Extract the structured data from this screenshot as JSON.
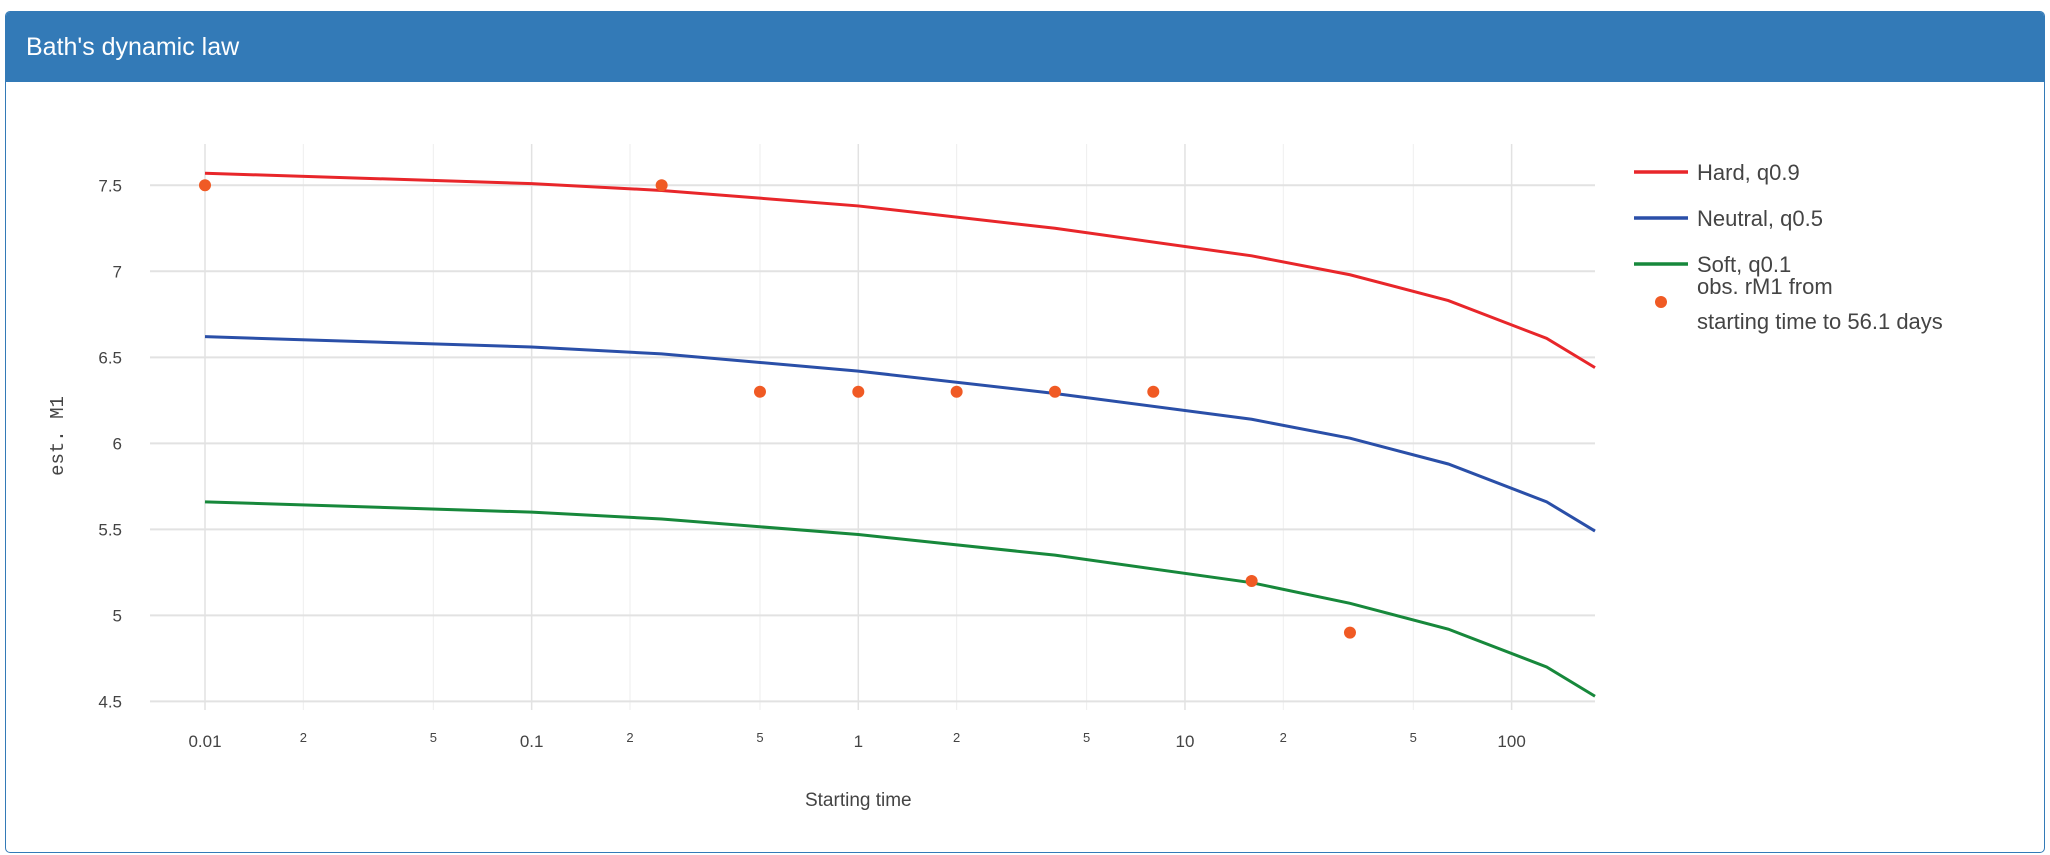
{
  "panel": {
    "title": "Bath's dynamic law"
  },
  "chart_data": {
    "type": "line",
    "title": "Bath's dynamic law",
    "xlabel": "Starting time",
    "ylabel": "est. M1",
    "xscale": "log",
    "xlim": [
      0.01,
      180
    ],
    "ylim": [
      4.45,
      7.74
    ],
    "grid": true,
    "legend_position": "right",
    "x_major_ticks": [
      {
        "v": 0.01,
        "label": "0.01"
      },
      {
        "v": 0.1,
        "label": "0.1"
      },
      {
        "v": 1,
        "label": "1"
      },
      {
        "v": 10,
        "label": "10"
      },
      {
        "v": 100,
        "label": "100"
      }
    ],
    "x_minor_ticks": [
      {
        "v": 0.02,
        "label": "2"
      },
      {
        "v": 0.05,
        "label": "5"
      },
      {
        "v": 0.2,
        "label": "2"
      },
      {
        "v": 0.5,
        "label": "5"
      },
      {
        "v": 2,
        "label": "2"
      },
      {
        "v": 5,
        "label": "5"
      },
      {
        "v": 20,
        "label": "2"
      },
      {
        "v": 50,
        "label": "5"
      }
    ],
    "y_ticks": [
      {
        "v": 4.5,
        "label": "4.5"
      },
      {
        "v": 5,
        "label": "5"
      },
      {
        "v": 5.5,
        "label": "5.5"
      },
      {
        "v": 6,
        "label": "6"
      },
      {
        "v": 6.5,
        "label": "6.5"
      },
      {
        "v": 7,
        "label": "7"
      },
      {
        "v": 7.5,
        "label": "7.5"
      }
    ],
    "x": [
      0.01,
      0.1,
      0.25,
      1,
      4,
      16,
      32,
      64,
      128,
      180
    ],
    "series": [
      {
        "name": "Hard, q0.9",
        "color": "#e8262a",
        "values": [
          7.57,
          7.51,
          7.47,
          7.38,
          7.25,
          7.09,
          6.98,
          6.83,
          6.61,
          6.44
        ]
      },
      {
        "name": "Neutral, q0.5",
        "color": "#2a4fa8",
        "values": [
          6.62,
          6.56,
          6.52,
          6.42,
          6.29,
          6.14,
          6.03,
          5.88,
          5.66,
          5.49
        ]
      },
      {
        "name": "Soft, q0.1",
        "color": "#17883b",
        "values": [
          5.66,
          5.6,
          5.56,
          5.47,
          5.35,
          5.19,
          5.07,
          4.92,
          4.7,
          4.53
        ]
      }
    ],
    "scatter": {
      "name_line1": "obs. rM1 from",
      "name_line2": " starting time to 56.1 days",
      "color": "#f05a24",
      "points": [
        [
          0.01,
          7.5
        ],
        [
          0.25,
          7.5
        ],
        [
          0.5,
          6.3
        ],
        [
          1,
          6.3
        ],
        [
          2,
          6.3
        ],
        [
          4,
          6.3
        ],
        [
          8,
          6.3
        ],
        [
          16,
          5.2
        ],
        [
          32,
          4.9
        ]
      ]
    }
  }
}
